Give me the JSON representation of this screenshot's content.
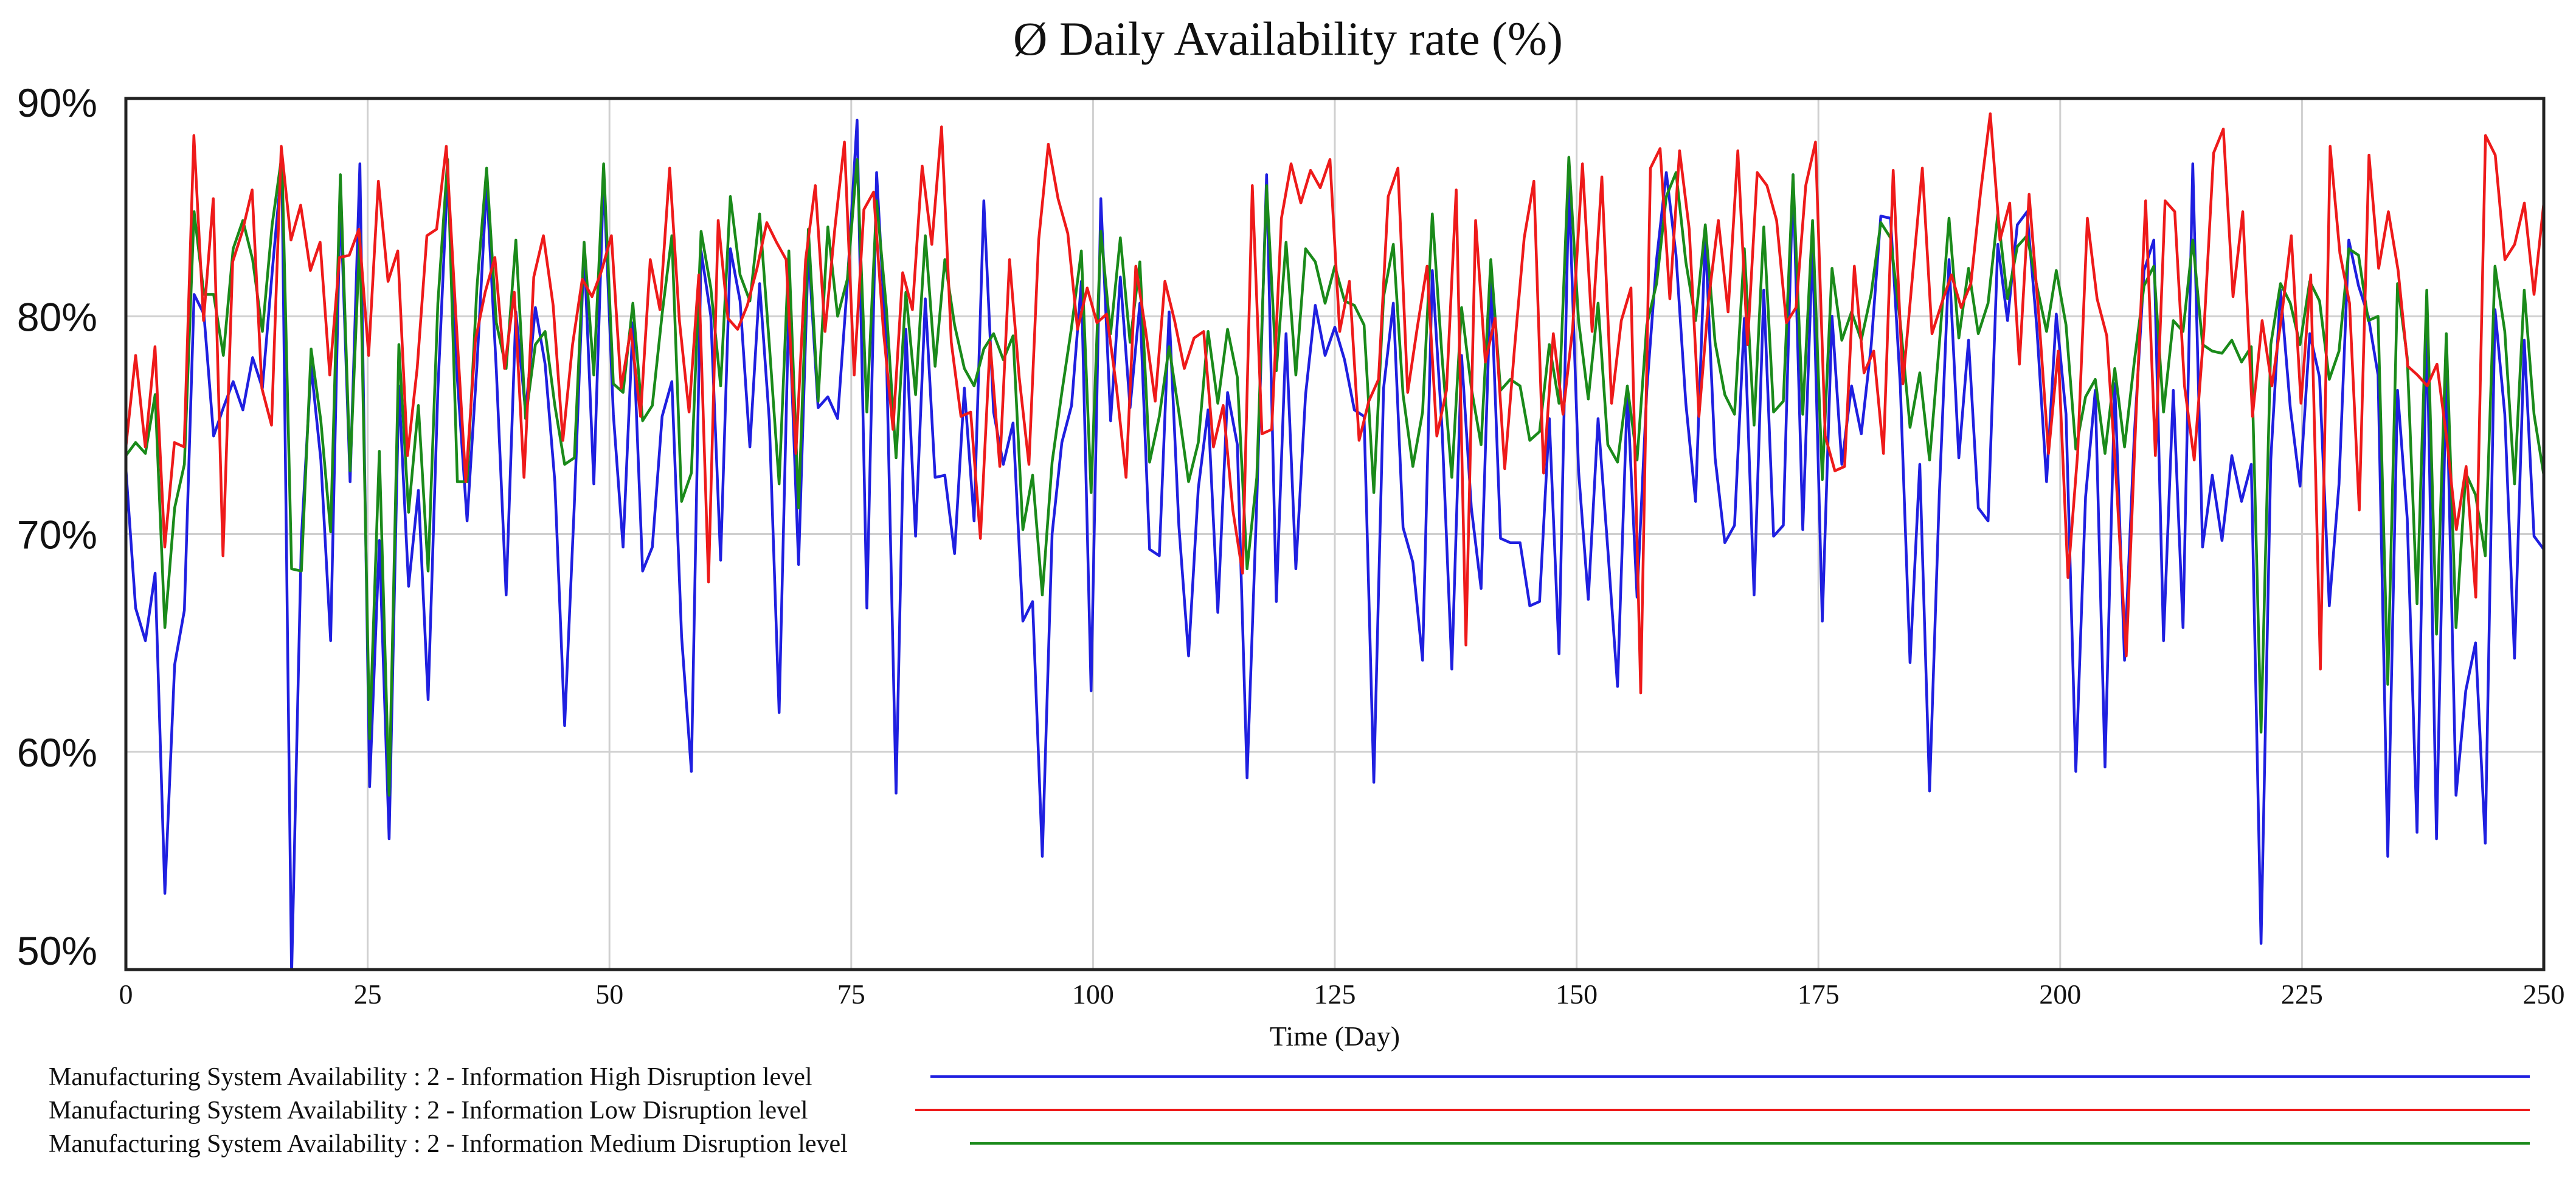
{
  "chart_data": {
    "type": "line",
    "title": "Ø Daily Availability rate (%)",
    "xlabel": "Time (Day)",
    "ylabel": "",
    "xlim": [
      0,
      250
    ],
    "ylim": [
      50,
      90
    ],
    "xticks": [
      0,
      25,
      50,
      75,
      100,
      125,
      150,
      175,
      200,
      225,
      250
    ],
    "xtick_labels": [
      "0",
      "25",
      "50",
      "75",
      "100",
      "125",
      "150",
      "175",
      "200",
      "225",
      "250"
    ],
    "yticks": [
      50,
      60,
      70,
      80,
      90
    ],
    "ytick_labels": [
      "50%",
      "60%",
      "70%",
      "80%",
      "90%"
    ],
    "grid": true,
    "legend_position": "bottom",
    "series": [
      {
        "name": "Manufacturing System Availability : 2 - Information High Disruption level",
        "color": "#1f1fe0",
        "values": [
          73.0,
          66.6,
          65.1,
          68.2,
          53.5,
          64.0,
          66.5,
          81.0,
          80.1,
          74.5,
          75.8,
          77.0,
          75.7,
          78.1,
          76.7,
          82.0,
          87.0,
          49.7,
          69.8,
          77.7,
          73.4,
          65.1,
          85.5,
          72.4,
          87.0,
          58.4,
          69.7,
          56.0,
          76.8,
          67.6,
          72.0,
          62.4,
          76.6,
          86.5,
          77.1,
          70.6,
          77.7,
          86.1,
          77.5,
          67.2,
          80.2,
          75.6,
          80.4,
          77.8,
          72.4,
          61.2,
          71.4,
          83.1,
          72.3,
          86.4,
          75.5,
          69.4,
          79.7,
          68.3,
          69.4,
          75.4,
          77.0,
          65.3,
          59.1,
          83.0,
          80.0,
          68.8,
          83.1,
          80.7,
          74.0,
          81.5,
          75.2,
          61.8,
          80.6,
          68.6,
          83.1,
          75.8,
          76.3,
          75.3,
          81.5,
          89.0,
          66.6,
          86.6,
          78.5,
          58.1,
          79.4,
          69.9,
          80.8,
          72.6,
          72.7,
          69.1,
          76.7,
          70.6,
          85.3,
          75.6,
          73.2,
          75.1,
          66.0,
          66.9,
          55.2,
          70.0,
          74.2,
          75.9,
          81.6,
          62.8,
          85.4,
          75.2,
          81.8,
          75.8,
          80.6,
          69.3,
          69.0,
          80.2,
          70.4,
          64.4,
          72.1,
          75.7,
          66.4,
          76.5,
          74.1,
          58.8,
          71.5,
          86.5,
          66.9,
          79.2,
          68.4,
          76.4,
          80.5,
          78.2,
          79.5,
          78.0,
          75.7,
          75.4,
          58.6,
          76.7,
          80.6,
          70.3,
          68.7,
          64.2,
          82.1,
          74.8,
          63.8,
          78.2,
          71.2,
          67.5,
          81.8,
          69.8,
          69.6,
          69.6,
          66.7,
          66.9,
          75.3,
          64.5,
          86.1,
          72.9,
          67.0,
          75.3,
          69.3,
          63.0,
          76.5,
          67.1,
          76.6,
          82.6,
          86.6,
          82.8,
          76.0,
          71.5,
          83.7,
          73.5,
          69.6,
          70.4,
          79.9,
          67.2,
          81.2,
          69.9,
          70.4,
          86.5,
          70.2,
          83.3,
          66.0,
          80.0,
          73.2,
          76.8,
          74.6,
          78.6,
          84.6,
          84.5,
          76.8,
          64.1,
          73.2,
          58.2,
          71.8,
          82.6,
          73.5,
          78.9,
          71.2,
          70.6,
          83.3,
          79.8,
          84.2,
          84.8,
          79.5,
          72.4,
          80.1,
          75.5,
          59.1,
          71.7,
          76.6,
          59.3,
          76.9,
          64.2,
          74.5,
          82.1,
          83.5,
          65.1,
          76.6,
          65.7,
          87.0,
          69.4,
          72.7,
          69.7,
          73.6,
          71.5,
          73.2,
          51.2,
          73.4,
          81.2,
          75.8,
          72.2,
          79.2,
          77.2,
          66.7,
          72.3,
          83.5,
          81.4,
          80.0,
          77.3,
          55.2,
          76.6,
          70.7,
          56.3,
          79.8,
          56.0,
          77.6,
          58.0,
          62.8,
          65.0,
          55.8,
          80.3,
          75.5,
          64.3,
          78.9,
          69.9,
          69.3
        ]
      },
      {
        "name": "Manufacturing System Availability : 2 - Information Low Disruption level",
        "color": "#ee1a1a",
        "values": [
          74.0,
          78.2,
          74.0,
          78.6,
          69.4,
          74.2,
          74.0,
          88.3,
          79.8,
          85.4,
          69.0,
          82.5,
          83.9,
          85.8,
          76.7,
          75.0,
          87.8,
          83.5,
          85.1,
          82.1,
          83.4,
          77.3,
          82.7,
          82.8,
          84.0,
          78.2,
          86.2,
          81.6,
          83.0,
          73.6,
          77.6,
          83.7,
          84.0,
          87.8,
          79.9,
          72.4,
          78.9,
          81.1,
          82.7,
          77.6,
          81.1,
          72.6,
          81.8,
          83.7,
          80.5,
          74.3,
          78.7,
          81.7,
          80.9,
          82.1,
          83.7,
          76.7,
          79.4,
          75.4,
          82.6,
          80.3,
          86.8,
          79.8,
          75.6,
          81.9,
          67.8,
          84.4,
          79.9,
          79.4,
          80.5,
          82.2,
          84.3,
          83.4,
          82.6,
          73.7,
          82.6,
          86.0,
          79.3,
          84.0,
          88.0,
          77.3,
          84.9,
          85.7,
          79.4,
          74.8,
          82.0,
          80.3,
          86.9,
          83.3,
          88.7,
          78.8,
          75.4,
          75.6,
          69.8,
          78.8,
          73.1,
          82.6,
          77.2,
          73.2,
          83.5,
          87.9,
          85.4,
          83.8,
          79.4,
          81.3,
          79.7,
          80.1,
          76.8,
          72.6,
          82.3,
          79.4,
          76.1,
          81.6,
          79.8,
          77.6,
          79.0,
          79.3,
          74.0,
          75.9,
          71.1,
          68.2,
          86.0,
          74.6,
          74.8,
          84.5,
          87.0,
          85.2,
          86.7,
          85.9,
          87.2,
          79.3,
          81.6,
          74.3,
          76.1,
          77.1,
          85.5,
          86.8,
          76.5,
          79.5,
          82.3,
          74.5,
          76.6,
          85.8,
          64.9,
          84.4,
          77.9,
          79.9,
          73.0,
          78.5,
          83.6,
          86.2,
          72.8,
          79.2,
          75.5,
          79.5,
          87.0,
          79.3,
          86.4,
          76.0,
          79.8,
          81.3,
          62.7,
          86.8,
          87.7,
          80.8,
          87.6,
          84.0,
          75.4,
          80.8,
          84.4,
          80.2,
          87.6,
          78.7,
          86.6,
          86.0,
          84.4,
          79.7,
          80.4,
          86.0,
          88.0,
          74.5,
          72.9,
          73.1,
          82.3,
          77.4,
          78.4,
          73.7,
          86.7,
          76.9,
          81.9,
          86.8,
          79.2,
          80.6,
          81.9,
          80.4,
          81.5,
          85.7,
          89.3,
          83.5,
          85.2,
          77.8,
          85.6,
          80.0,
          73.7,
          78.4,
          68.0,
          73.7,
          84.5,
          80.8,
          79.1,
          72.3,
          64.4,
          75.3,
          85.3,
          73.6,
          85.3,
          84.8,
          76.8,
          73.4,
          79.3,
          87.5,
          88.6,
          80.9,
          84.8,
          75.4,
          79.8,
          76.8,
          80.0,
          83.7,
          76.0,
          81.9,
          63.8,
          87.8,
          82.9,
          80.6,
          71.1,
          87.4,
          82.2,
          84.8,
          82.1,
          77.7,
          77.3,
          76.8,
          77.8,
          74.4,
          70.2,
          73.1,
          67.1,
          88.3,
          87.4,
          82.6,
          83.3,
          85.2,
          81.0,
          85.2
        ]
      },
      {
        "name": "Manufacturing System Availability : 2 - Information Medium Disruption level",
        "color": "#1a8a1a",
        "values": [
          73.6,
          74.2,
          73.7,
          76.4,
          65.7,
          71.2,
          73.2,
          84.8,
          81.0,
          81.0,
          78.2,
          83.1,
          84.4,
          82.6,
          79.3,
          84.2,
          87.4,
          68.4,
          68.3,
          78.5,
          75.2,
          70.1,
          86.5,
          72.9,
          83.8,
          60.6,
          73.8,
          58.0,
          78.7,
          71.0,
          75.9,
          68.3,
          80.6,
          87.2,
          72.4,
          72.4,
          81.3,
          86.8,
          79.7,
          77.6,
          83.5,
          75.3,
          78.7,
          79.3,
          75.9,
          73.2,
          73.5,
          83.4,
          77.3,
          87.0,
          76.9,
          76.5,
          80.6,
          75.2,
          75.9,
          80.1,
          83.7,
          71.5,
          72.8,
          83.9,
          81.3,
          76.8,
          85.5,
          81.9,
          80.7,
          84.7,
          78.7,
          72.3,
          83.0,
          71.2,
          84.0,
          76.1,
          84.1,
          80.0,
          81.7,
          87.2,
          75.6,
          85.3,
          80.4,
          73.5,
          81.1,
          76.4,
          83.7,
          77.7,
          82.6,
          79.6,
          77.6,
          76.8,
          78.5,
          79.2,
          78.0,
          79.1,
          70.2,
          72.7,
          67.2,
          73.3,
          76.5,
          79.5,
          83.0,
          71.9,
          83.9,
          79.2,
          83.6,
          78.8,
          82.5,
          73.3,
          75.4,
          78.6,
          75.6,
          72.4,
          74.2,
          79.3,
          76.0,
          79.4,
          77.2,
          68.4,
          72.6,
          86.0,
          77.5,
          83.4,
          77.3,
          83.1,
          82.5,
          80.6,
          82.3,
          80.7,
          80.5,
          79.6,
          71.9,
          80.9,
          83.3,
          76.4,
          73.1,
          75.6,
          84.7,
          78.1,
          72.6,
          80.4,
          76.7,
          74.1,
          82.6,
          76.6,
          77.1,
          76.8,
          74.3,
          74.7,
          78.7,
          76.0,
          87.3,
          79.8,
          76.2,
          80.6,
          74.1,
          73.3,
          76.8,
          73.4,
          79.6,
          81.5,
          85.5,
          86.6,
          82.5,
          79.8,
          84.2,
          78.8,
          76.4,
          75.5,
          83.1,
          75.0,
          84.1,
          75.6,
          76.1,
          86.5,
          75.5,
          84.4,
          72.5,
          82.2,
          78.9,
          80.2,
          78.9,
          81.0,
          84.3,
          83.6,
          79.7,
          74.9,
          77.4,
          73.4,
          78.7,
          84.5,
          79.0,
          82.2,
          79.2,
          80.6,
          84.7,
          80.8,
          83.2,
          83.7,
          81.4,
          79.3,
          82.1,
          79.6,
          73.9,
          76.3,
          77.1,
          73.7,
          77.6,
          74.0,
          77.9,
          81.4,
          82.3,
          75.6,
          79.8,
          79.3,
          83.5,
          78.7,
          78.4,
          78.3,
          78.9,
          77.9,
          78.6,
          60.9,
          78.7,
          81.5,
          80.6,
          78.7,
          81.6,
          80.7,
          77.1,
          78.4,
          83.1,
          82.8,
          79.8,
          80.0,
          63.1,
          81.5,
          78.1,
          66.8,
          81.2,
          65.4,
          79.2,
          65.7,
          72.8,
          71.8,
          69.0,
          82.3,
          79.3,
          72.3,
          81.2,
          75.5,
          72.7
        ]
      }
    ]
  }
}
